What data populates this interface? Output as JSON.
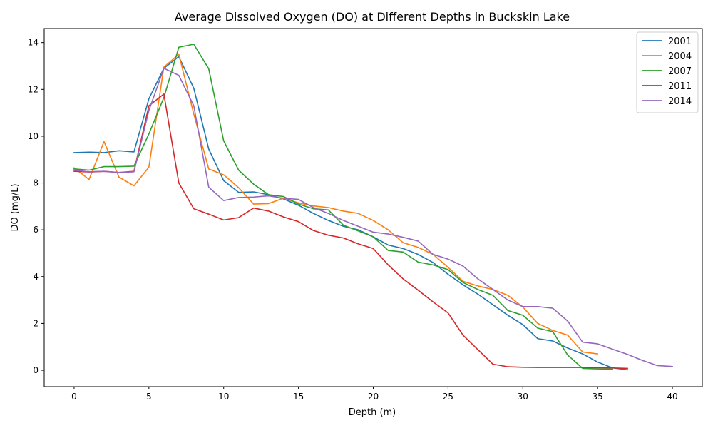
{
  "chart_data": {
    "type": "line",
    "title": "Average Dissolved Oxygen (DO) at Different Depths in Buckskin Lake",
    "xlabel": "Depth (m)",
    "ylabel": "DO (mg/L)",
    "xlim": [
      -2,
      42
    ],
    "ylim": [
      -0.7,
      14.6
    ],
    "xticks": [
      0,
      5,
      10,
      15,
      20,
      25,
      30,
      35,
      40
    ],
    "yticks": [
      0,
      2,
      4,
      6,
      8,
      10,
      12,
      14
    ],
    "grid": false,
    "legend_position": "top-right",
    "series": [
      {
        "name": "2001",
        "color": "#1f77b4",
        "x": [
          0,
          1,
          2,
          3,
          4,
          5,
          6,
          7,
          8,
          9,
          10,
          11,
          12,
          13,
          14,
          15,
          16,
          17,
          18,
          19,
          20,
          21,
          22,
          23,
          24,
          25,
          26,
          27,
          28,
          29,
          30,
          31,
          32,
          33,
          34,
          35,
          36,
          37
        ],
        "y": [
          9.3,
          9.32,
          9.3,
          9.38,
          9.33,
          11.6,
          12.9,
          13.4,
          12.05,
          9.45,
          8.1,
          7.6,
          7.62,
          7.5,
          7.32,
          7.05,
          6.7,
          6.4,
          6.15,
          6.0,
          5.7,
          5.35,
          5.2,
          4.95,
          4.6,
          4.1,
          3.65,
          3.25,
          2.8,
          2.35,
          1.95,
          1.35,
          1.25,
          0.95,
          0.7,
          0.35,
          0.1,
          0.02
        ]
      },
      {
        "name": "2004",
        "color": "#ff7f0e",
        "x": [
          0,
          1,
          2,
          3,
          4,
          5,
          6,
          7,
          8,
          9,
          10,
          11,
          12,
          13,
          14,
          15,
          16,
          17,
          18,
          19,
          20,
          21,
          22,
          23,
          24,
          25,
          26,
          27,
          28,
          29,
          30,
          31,
          32,
          33,
          34,
          35
        ],
        "y": [
          8.65,
          8.15,
          9.77,
          8.25,
          7.88,
          8.68,
          12.95,
          13.5,
          10.95,
          8.6,
          8.35,
          7.8,
          7.1,
          7.12,
          7.35,
          7.15,
          7.02,
          6.95,
          6.8,
          6.7,
          6.4,
          6.0,
          5.45,
          5.25,
          4.95,
          4.4,
          3.8,
          3.6,
          3.45,
          3.2,
          2.7,
          2.0,
          1.7,
          1.5,
          0.78,
          0.7
        ]
      },
      {
        "name": "2007",
        "color": "#2ca02c",
        "x": [
          0,
          1,
          2,
          3,
          4,
          5,
          6,
          7,
          8,
          9,
          10,
          11,
          12,
          13,
          14,
          15,
          16,
          17,
          18,
          19,
          20,
          21,
          22,
          23,
          24,
          25,
          26,
          27,
          28,
          29,
          30,
          31,
          32,
          33,
          34,
          35,
          36
        ],
        "y": [
          8.6,
          8.55,
          8.7,
          8.7,
          8.72,
          10.1,
          11.65,
          13.8,
          13.93,
          12.88,
          9.8,
          8.55,
          7.95,
          7.5,
          7.42,
          7.1,
          6.9,
          6.85,
          6.2,
          5.95,
          5.7,
          5.12,
          5.05,
          4.62,
          4.5,
          4.3,
          3.75,
          3.45,
          3.2,
          2.55,
          2.35,
          1.8,
          1.65,
          0.65,
          0.08,
          0.06,
          0.05
        ]
      },
      {
        "name": "2011",
        "color": "#d62728",
        "x": [
          0,
          1,
          2,
          3,
          4,
          5,
          6,
          7,
          8,
          9,
          10,
          11,
          12,
          13,
          14,
          15,
          16,
          17,
          18,
          19,
          20,
          21,
          22,
          23,
          24,
          25,
          26,
          27,
          28,
          29,
          30,
          31,
          32,
          33,
          34,
          35,
          36,
          37
        ],
        "y": [
          8.5,
          8.47,
          8.5,
          8.45,
          8.5,
          11.3,
          11.8,
          8.0,
          6.9,
          6.67,
          6.42,
          6.52,
          6.93,
          6.8,
          6.55,
          6.35,
          5.97,
          5.77,
          5.65,
          5.4,
          5.2,
          4.5,
          3.9,
          3.42,
          2.92,
          2.45,
          1.5,
          0.88,
          0.26,
          0.15,
          0.13,
          0.12,
          0.12,
          0.12,
          0.12,
          0.11,
          0.1,
          0.08
        ]
      },
      {
        "name": "2014",
        "color": "#9467bd",
        "x": [
          0,
          1,
          2,
          3,
          4,
          5,
          6,
          7,
          8,
          9,
          10,
          11,
          12,
          13,
          14,
          15,
          16,
          17,
          18,
          19,
          20,
          21,
          22,
          23,
          24,
          25,
          26,
          27,
          28,
          29,
          30,
          31,
          32,
          33,
          34,
          35,
          36,
          37,
          38,
          39,
          40
        ],
        "y": [
          8.55,
          8.48,
          8.5,
          8.45,
          8.48,
          11.1,
          12.9,
          12.6,
          11.3,
          7.82,
          7.25,
          7.38,
          7.4,
          7.45,
          7.35,
          7.3,
          6.95,
          6.7,
          6.4,
          6.15,
          5.9,
          5.82,
          5.68,
          5.52,
          4.95,
          4.75,
          4.45,
          3.9,
          3.45,
          3.0,
          2.72,
          2.72,
          2.65,
          2.1,
          1.2,
          1.13,
          0.9,
          0.68,
          0.42,
          0.2,
          0.16
        ]
      }
    ]
  }
}
